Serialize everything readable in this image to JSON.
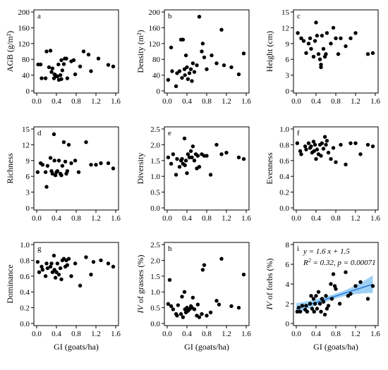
{
  "colors": {
    "points": "#000000",
    "fit_line": "#2878d8",
    "ci_band": "#8ec8f2"
  },
  "chart_data": [
    {
      "type": "scatter",
      "panel_label": "a",
      "ylabel": "AGB (g/m²)",
      "xlabel": "",
      "xlim": [
        0,
        1.6
      ],
      "ylim": [
        0,
        200
      ],
      "xticks": [
        "0.0",
        "0.4",
        "0.8",
        "1.2",
        "1.6"
      ],
      "yticks": [
        "0",
        "40",
        "80",
        "120",
        "160",
        "200"
      ],
      "x": [
        0.03,
        0.08,
        0.1,
        0.18,
        0.2,
        0.25,
        0.28,
        0.3,
        0.32,
        0.35,
        0.36,
        0.38,
        0.4,
        0.42,
        0.44,
        0.45,
        0.48,
        0.5,
        0.5,
        0.52,
        0.55,
        0.57,
        0.6,
        0.62,
        0.7,
        0.75,
        0.78,
        0.88,
        0.95,
        1.05,
        1.1,
        1.25,
        1.45,
        1.55
      ],
      "y": [
        67,
        67,
        32,
        32,
        100,
        60,
        102,
        48,
        57,
        32,
        42,
        40,
        37,
        37,
        67,
        28,
        40,
        30,
        78,
        52,
        68,
        82,
        82,
        32,
        75,
        78,
        42,
        62,
        100,
        92,
        50,
        82,
        66,
        62
      ]
    },
    {
      "type": "scatter",
      "panel_label": "b",
      "ylabel": "Density (m²)",
      "xlabel": "",
      "xlim": [
        0,
        1.6
      ],
      "ylim": [
        0,
        200
      ],
      "xticks": [
        "0.0",
        "0.4",
        "0.8",
        "1.2",
        "1.6"
      ],
      "yticks": [
        "0",
        "40",
        "80",
        "120",
        "160",
        "200"
      ],
      "x": [
        0.02,
        0.08,
        0.1,
        0.18,
        0.2,
        0.25,
        0.28,
        0.3,
        0.32,
        0.35,
        0.36,
        0.38,
        0.4,
        0.42,
        0.45,
        0.48,
        0.5,
        0.52,
        0.55,
        0.6,
        0.65,
        0.7,
        0.72,
        0.75,
        0.8,
        0.9,
        1.0,
        1.1,
        1.15,
        1.3,
        1.45,
        1.55
      ],
      "y": [
        28,
        110,
        50,
        12,
        45,
        50,
        130,
        33,
        130,
        55,
        40,
        90,
        60,
        30,
        45,
        55,
        25,
        70,
        48,
        65,
        188,
        100,
        120,
        85,
        55,
        90,
        70,
        155,
        65,
        60,
        42,
        95
      ]
    },
    {
      "type": "scatter",
      "panel_label": "c",
      "ylabel": "Height (cm)",
      "xlabel": "",
      "xlim": [
        0,
        1.6
      ],
      "ylim": [
        0,
        15
      ],
      "xticks": [
        "0.0",
        "0.4",
        "0.8",
        "1.2",
        "1.6"
      ],
      "yticks": [
        "0",
        "3",
        "6",
        "9",
        "12",
        "15"
      ],
      "x": [
        0.03,
        0.1,
        0.15,
        0.2,
        0.25,
        0.28,
        0.3,
        0.35,
        0.38,
        0.4,
        0.42,
        0.45,
        0.48,
        0.5,
        0.5,
        0.52,
        0.55,
        0.58,
        0.6,
        0.62,
        0.7,
        0.75,
        0.8,
        0.85,
        0.9,
        1.0,
        1.1,
        1.2,
        1.45,
        1.55
      ],
      "y": [
        11,
        10,
        9.5,
        7.2,
        9,
        10,
        8,
        6.5,
        9.5,
        13,
        10.5,
        7,
        6,
        5,
        4.5,
        10.5,
        8,
        6.5,
        7,
        11,
        9,
        12,
        10,
        7,
        10,
        8.5,
        10,
        11,
        7,
        7.2
      ]
    },
    {
      "type": "scatter",
      "panel_label": "d",
      "ylabel": "Richness",
      "xlabel": "",
      "xlim": [
        0,
        1.6
      ],
      "ylim": [
        0,
        15
      ],
      "xticks": [
        "0.0",
        "0.4",
        "0.8",
        "1.2",
        "1.6"
      ],
      "yticks": [
        "0",
        "3",
        "6",
        "9",
        "12",
        "15"
      ],
      "x": [
        0.02,
        0.08,
        0.12,
        0.18,
        0.2,
        0.22,
        0.28,
        0.3,
        0.32,
        0.35,
        0.36,
        0.38,
        0.4,
        0.42,
        0.45,
        0.48,
        0.5,
        0.52,
        0.55,
        0.58,
        0.6,
        0.62,
        0.65,
        0.7,
        0.78,
        0.85,
        1.0,
        1.1,
        1.2,
        1.3,
        1.45,
        1.55
      ],
      "y": [
        6.8,
        8.5,
        8.2,
        6.8,
        4,
        8,
        9.5,
        7,
        6.5,
        14,
        9,
        6.2,
        6.8,
        7,
        9,
        6.5,
        6.2,
        8,
        12.5,
        8.8,
        6.5,
        7,
        12,
        8.5,
        9,
        6.8,
        12.5,
        8.2,
        8.2,
        8.5,
        8.5,
        7.5
      ]
    },
    {
      "type": "scatter",
      "panel_label": "e",
      "ylabel": "Diversity",
      "xlabel": "",
      "xlim": [
        0,
        1.6
      ],
      "ylim": [
        0,
        2.5
      ],
      "xticks": [
        "0.0",
        "0.4",
        "0.8",
        "1.2",
        "1.6"
      ],
      "yticks": [
        "0.0",
        "0.5",
        "1.0",
        "1.5",
        "2.0",
        "2.5"
      ],
      "x": [
        0.02,
        0.08,
        0.12,
        0.18,
        0.2,
        0.25,
        0.28,
        0.3,
        0.32,
        0.35,
        0.36,
        0.38,
        0.4,
        0.42,
        0.45,
        0.48,
        0.5,
        0.52,
        0.55,
        0.58,
        0.6,
        0.62,
        0.65,
        0.7,
        0.75,
        0.8,
        0.88,
        1.0,
        1.1,
        1.2,
        1.45,
        1.55
      ],
      "y": [
        1.6,
        1.4,
        1.7,
        1.05,
        1.55,
        1.3,
        1.5,
        1.55,
        1.4,
        2.2,
        1.35,
        1.5,
        1.1,
        1.7,
        1.6,
        1.8,
        1.6,
        1.95,
        1.5,
        1.7,
        1.25,
        1.65,
        1.3,
        1.7,
        1.65,
        1.65,
        1.05,
        2.0,
        1.7,
        1.75,
        1.6,
        1.55
      ]
    },
    {
      "type": "scatter",
      "panel_label": "f",
      "ylabel": "Evenness",
      "xlabel": "",
      "xlim": [
        0,
        1.6
      ],
      "ylim": [
        0,
        1.0
      ],
      "xticks": [
        "0.0",
        "0.4",
        "0.8",
        "1.2",
        "1.6"
      ],
      "yticks": [
        "0.0",
        "0.2",
        "0.4",
        "0.6",
        "0.8",
        "1.0"
      ],
      "x": [
        0.02,
        0.08,
        0.1,
        0.18,
        0.2,
        0.25,
        0.28,
        0.3,
        0.32,
        0.35,
        0.36,
        0.38,
        0.4,
        0.42,
        0.45,
        0.48,
        0.5,
        0.52,
        0.55,
        0.58,
        0.6,
        0.62,
        0.65,
        0.7,
        0.75,
        0.8,
        0.9,
        1.0,
        1.1,
        1.2,
        1.3,
        1.45,
        1.55
      ],
      "y": [
        0.82,
        0.72,
        0.68,
        0.78,
        0.74,
        0.82,
        0.76,
        0.78,
        0.7,
        0.84,
        0.72,
        0.8,
        0.62,
        0.74,
        0.68,
        0.8,
        0.66,
        0.82,
        0.75,
        0.9,
        0.8,
        0.85,
        0.7,
        0.62,
        0.76,
        0.58,
        0.8,
        0.55,
        0.82,
        0.82,
        0.68,
        0.8,
        0.78
      ]
    },
    {
      "type": "scatter",
      "panel_label": "g",
      "ylabel": "Dominance",
      "xlabel": "GI (goats/ha)",
      "xlim": [
        0,
        1.6
      ],
      "ylim": [
        0,
        1.0
      ],
      "xticks": [
        "0.0",
        "0.4",
        "0.8",
        "1.2",
        "1.6"
      ],
      "yticks": [
        "0.0",
        "0.2",
        "0.4",
        "0.6",
        "0.8",
        "1.0"
      ],
      "x": [
        0.02,
        0.05,
        0.1,
        0.12,
        0.18,
        0.2,
        0.22,
        0.28,
        0.3,
        0.32,
        0.35,
        0.36,
        0.38,
        0.4,
        0.42,
        0.45,
        0.48,
        0.5,
        0.52,
        0.55,
        0.58,
        0.6,
        0.62,
        0.65,
        0.7,
        0.78,
        0.88,
        1.0,
        1.1,
        1.15,
        1.3,
        1.45,
        1.55
      ],
      "y": [
        0.78,
        0.65,
        0.72,
        0.68,
        0.6,
        0.76,
        0.7,
        0.72,
        0.76,
        0.65,
        0.86,
        0.68,
        0.58,
        0.65,
        0.76,
        0.62,
        0.7,
        0.56,
        0.8,
        0.82,
        0.72,
        0.8,
        0.74,
        0.82,
        0.6,
        0.76,
        0.48,
        0.84,
        0.62,
        0.78,
        0.8,
        0.76,
        0.72
      ]
    },
    {
      "type": "scatter",
      "panel_label": "h",
      "ylabel": "IV of grasses (%)",
      "xlabel": "GI (goats/ha)",
      "xlim": [
        0,
        1.6
      ],
      "ylim": [
        0,
        2.5
      ],
      "xticks": [
        "0.0",
        "0.4",
        "0.8",
        "1.2",
        "1.6"
      ],
      "yticks": [
        "0.0",
        "0.5",
        "1.0",
        "1.5",
        "2.0",
        "2.5"
      ],
      "x": [
        0.02,
        0.05,
        0.08,
        0.12,
        0.18,
        0.2,
        0.22,
        0.28,
        0.3,
        0.32,
        0.35,
        0.36,
        0.38,
        0.4,
        0.42,
        0.45,
        0.48,
        0.5,
        0.52,
        0.55,
        0.6,
        0.62,
        0.65,
        0.7,
        0.72,
        0.75,
        0.8,
        0.88,
        1.0,
        1.05,
        1.1,
        1.3,
        1.45,
        1.55
      ],
      "y": [
        0.62,
        1.38,
        0.55,
        0.45,
        0.3,
        0.25,
        0.58,
        0.3,
        0.85,
        0.2,
        1.0,
        0.45,
        0.35,
        0.5,
        0.4,
        0.45,
        0.55,
        0.5,
        0.82,
        0.45,
        0.25,
        0.6,
        0.2,
        0.3,
        1.7,
        1.85,
        0.25,
        0.35,
        0.72,
        0.6,
        2.05,
        0.55,
        0.5,
        1.55
      ]
    },
    {
      "type": "scatter",
      "panel_label": "i",
      "ylabel": "IV of forbs (%)",
      "xlabel": "GI (goats/ha)",
      "xlim": [
        0,
        1.6
      ],
      "ylim": [
        0,
        8
      ],
      "xticks": [
        "0.0",
        "0.4",
        "0.8",
        "1.2",
        "1.6"
      ],
      "yticks": [
        "0",
        "2",
        "4",
        "6",
        "8"
      ],
      "annotation_line1": "y = 1.6 x + 1.5",
      "annotation_line2": "R² = 0.32,  p = 0.00071",
      "fit": {
        "slope": 1.6,
        "intercept": 1.5,
        "x_range": [
          0,
          1.55
        ],
        "ci_halfwidth_start": 0.55,
        "ci_halfwidth_mid": 0.25,
        "ci_halfwidth_end": 0.9
      },
      "x": [
        0.02,
        0.05,
        0.08,
        0.12,
        0.18,
        0.2,
        0.22,
        0.28,
        0.3,
        0.32,
        0.35,
        0.36,
        0.38,
        0.4,
        0.42,
        0.45,
        0.48,
        0.5,
        0.52,
        0.55,
        0.58,
        0.6,
        0.62,
        0.65,
        0.7,
        0.72,
        0.75,
        0.78,
        0.8,
        0.88,
        1.0,
        1.05,
        1.1,
        1.2,
        1.3,
        1.45,
        1.55
      ],
      "y": [
        1.2,
        1.6,
        1.2,
        1.8,
        1.4,
        1.8,
        1.2,
        2.0,
        2.8,
        1.5,
        2.5,
        1.2,
        2.0,
        2.8,
        1.5,
        3.2,
        2.0,
        1.2,
        2.5,
        2.2,
        0.9,
        2.8,
        1.5,
        1.8,
        4.0,
        2.5,
        5.0,
        3.8,
        3.5,
        2.0,
        5.2,
        2.8,
        3.0,
        3.8,
        4.2,
        2.5,
        3.8
      ]
    }
  ]
}
